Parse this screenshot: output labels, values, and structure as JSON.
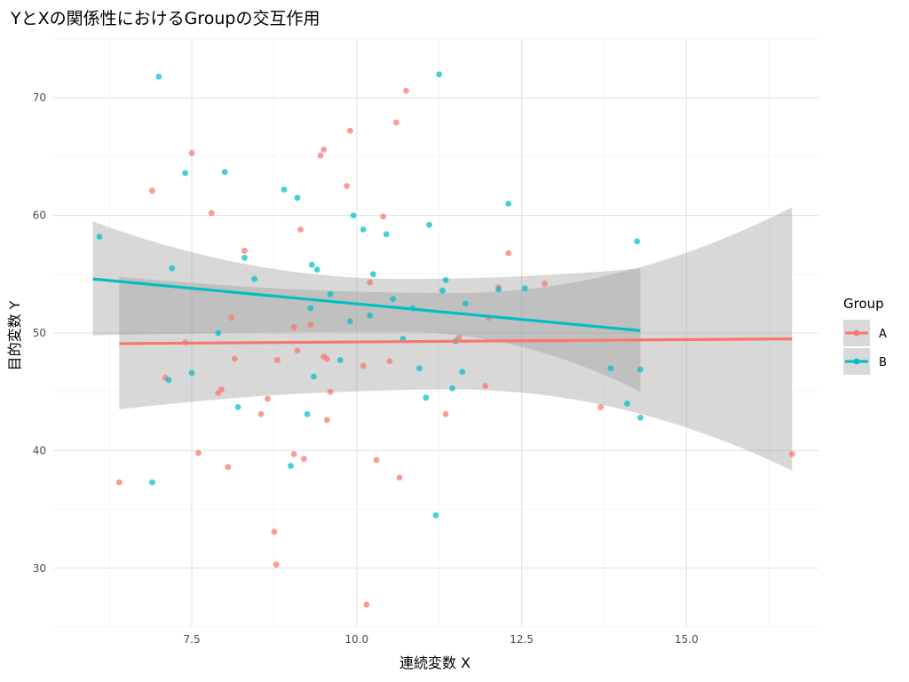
{
  "chart_data": {
    "type": "scatter",
    "title": "YとXの関係性におけるGroupの交互作用",
    "xlabel": "連続変数 X",
    "ylabel": "目的変数 Y",
    "xlim": [
      5.4,
      17.0
    ],
    "ylim": [
      25,
      75
    ],
    "x_ticks": [
      7.5,
      10.0,
      12.5,
      15.0
    ],
    "x_tick_labels": [
      "7.5",
      "10.0",
      "12.5",
      "15.0"
    ],
    "y_ticks": [
      30,
      40,
      50,
      60,
      70
    ],
    "y_tick_labels": [
      "30",
      "40",
      "50",
      "60",
      "70"
    ],
    "grid": true,
    "legend": {
      "title": "Group",
      "position": "right"
    },
    "series": [
      {
        "name": "A",
        "color": "#F8766D",
        "points": [
          [
            6.4,
            37.3
          ],
          [
            6.9,
            62.1
          ],
          [
            7.1,
            46.2
          ],
          [
            7.4,
            49.2
          ],
          [
            7.5,
            65.3
          ],
          [
            7.6,
            39.8
          ],
          [
            7.8,
            60.2
          ],
          [
            7.9,
            44.9
          ],
          [
            7.95,
            45.2
          ],
          [
            8.05,
            38.6
          ],
          [
            8.1,
            51.3
          ],
          [
            8.15,
            47.8
          ],
          [
            8.3,
            57.0
          ],
          [
            8.55,
            43.1
          ],
          [
            8.65,
            44.4
          ],
          [
            8.75,
            33.1
          ],
          [
            8.78,
            30.3
          ],
          [
            8.8,
            47.7
          ],
          [
            9.05,
            39.7
          ],
          [
            9.05,
            50.5
          ],
          [
            9.1,
            48.5
          ],
          [
            9.15,
            58.8
          ],
          [
            9.2,
            39.3
          ],
          [
            9.3,
            50.7
          ],
          [
            9.45,
            65.1
          ],
          [
            9.5,
            65.6
          ],
          [
            9.5,
            48.0
          ],
          [
            9.55,
            42.6
          ],
          [
            9.55,
            47.8
          ],
          [
            9.6,
            45.0
          ],
          [
            9.85,
            62.5
          ],
          [
            9.9,
            67.2
          ],
          [
            10.1,
            47.2
          ],
          [
            10.15,
            26.9
          ],
          [
            10.2,
            54.3
          ],
          [
            10.3,
            39.2
          ],
          [
            10.4,
            59.9
          ],
          [
            10.5,
            47.6
          ],
          [
            10.6,
            67.9
          ],
          [
            10.65,
            37.7
          ],
          [
            10.75,
            70.6
          ],
          [
            11.35,
            43.1
          ],
          [
            11.55,
            49.6
          ],
          [
            11.95,
            45.5
          ],
          [
            12.0,
            51.3
          ],
          [
            12.15,
            53.9
          ],
          [
            12.3,
            56.8
          ],
          [
            12.85,
            54.2
          ],
          [
            13.7,
            43.7
          ],
          [
            16.6,
            39.7
          ]
        ]
      },
      {
        "name": "B",
        "color": "#00BFC4",
        "points": [
          [
            6.1,
            58.2
          ],
          [
            6.9,
            37.3
          ],
          [
            7.0,
            71.8
          ],
          [
            7.15,
            46.0
          ],
          [
            7.2,
            55.5
          ],
          [
            7.4,
            63.6
          ],
          [
            7.5,
            46.6
          ],
          [
            7.9,
            50.0
          ],
          [
            8.0,
            63.7
          ],
          [
            8.2,
            43.7
          ],
          [
            8.3,
            56.4
          ],
          [
            8.45,
            54.6
          ],
          [
            8.9,
            62.2
          ],
          [
            9.0,
            38.7
          ],
          [
            9.1,
            61.5
          ],
          [
            9.25,
            43.1
          ],
          [
            9.3,
            52.1
          ],
          [
            9.32,
            55.8
          ],
          [
            9.35,
            46.3
          ],
          [
            9.4,
            55.4
          ],
          [
            9.6,
            53.3
          ],
          [
            9.75,
            47.7
          ],
          [
            9.9,
            51.0
          ],
          [
            9.95,
            60.0
          ],
          [
            10.1,
            58.8
          ],
          [
            10.2,
            51.5
          ],
          [
            10.25,
            55.0
          ],
          [
            10.45,
            58.4
          ],
          [
            10.55,
            52.9
          ],
          [
            10.7,
            49.5
          ],
          [
            10.85,
            52.1
          ],
          [
            10.95,
            47.0
          ],
          [
            11.05,
            44.5
          ],
          [
            11.1,
            59.2
          ],
          [
            11.2,
            34.5
          ],
          [
            11.25,
            72.0
          ],
          [
            11.3,
            53.6
          ],
          [
            11.35,
            54.5
          ],
          [
            11.45,
            45.3
          ],
          [
            11.6,
            46.7
          ],
          [
            11.65,
            52.5
          ],
          [
            12.15,
            53.7
          ],
          [
            12.3,
            61.0
          ],
          [
            12.55,
            53.8
          ],
          [
            13.85,
            47.0
          ],
          [
            14.1,
            44.0
          ],
          [
            14.25,
            57.8
          ],
          [
            14.3,
            42.8
          ],
          [
            14.3,
            46.9
          ],
          [
            11.5,
            49.3
          ]
        ]
      }
    ],
    "fit_lines": [
      {
        "name": "A",
        "color": "#F8766D",
        "x": [
          6.4,
          16.6
        ],
        "y": [
          49.1,
          49.5
        ],
        "ci_lower": [
          43.5,
          38.3
        ],
        "ci_upper": [
          54.8,
          60.7
        ],
        "ci_mid_x": 11.5,
        "ci_mid_lower": 45.2,
        "ci_mid_upper": 53.4
      },
      {
        "name": "B",
        "color": "#00BFC4",
        "x": [
          6.0,
          14.3
        ],
        "y": [
          54.6,
          50.2
        ],
        "ci_lower": [
          49.8,
          45.0
        ],
        "ci_upper": [
          59.5,
          55.5
        ],
        "ci_mid_x": 10.7,
        "ci_mid_lower": 50.1,
        "ci_mid_upper": 54.6
      }
    ]
  }
}
